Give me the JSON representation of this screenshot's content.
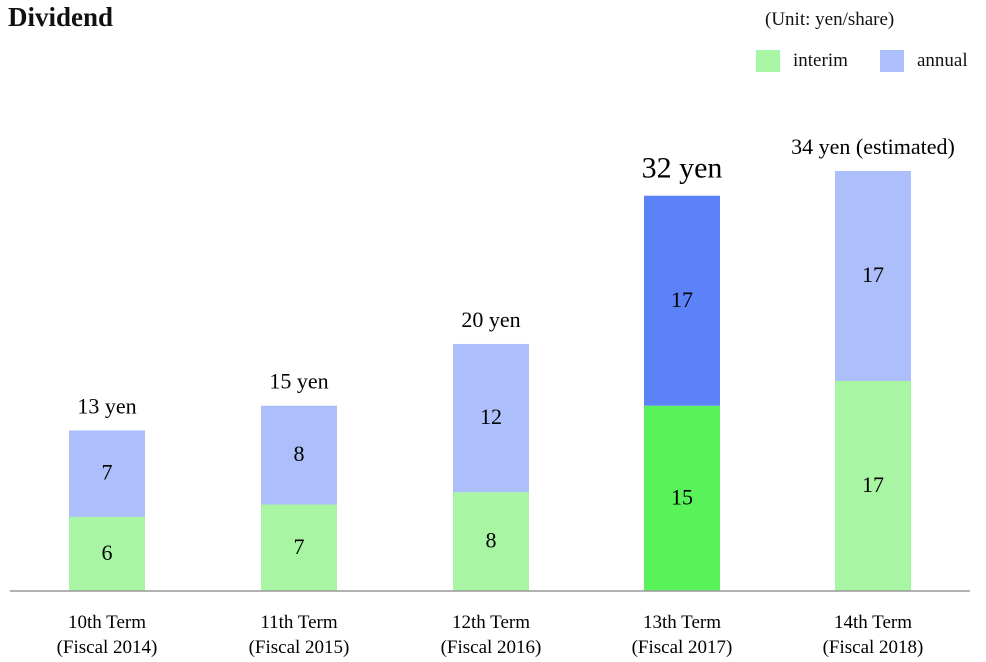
{
  "colors": {
    "interim": "#a8f5a4",
    "annual": "#acbffb",
    "interim_highlight": "#5af25a",
    "annual_highlight": "#5b82f9",
    "axis": "#999999"
  },
  "chart_data": {
    "type": "bar",
    "stacked": true,
    "title": "Dividend",
    "unit_note": "(Unit: yen/share)",
    "legend_position": "top-right",
    "grid": false,
    "ylim": [
      0,
      34
    ],
    "categories": [
      [
        "10th Term",
        "(Fiscal 2014)"
      ],
      [
        "11th Term",
        "(Fiscal 2015)"
      ],
      [
        "12th Term",
        "(Fiscal 2016)"
      ],
      [
        "13th Term",
        "(Fiscal 2017)"
      ],
      [
        "14th Term",
        "(Fiscal 2018)"
      ]
    ],
    "series": [
      {
        "name": "interim",
        "values": [
          6,
          7,
          8,
          15,
          17
        ]
      },
      {
        "name": "annual",
        "values": [
          7,
          8,
          12,
          17,
          17
        ]
      }
    ],
    "total_labels": [
      "13 yen",
      "15 yen",
      "20 yen",
      "32 yen",
      "34 yen (estimated)"
    ],
    "highlight_index": 3
  }
}
